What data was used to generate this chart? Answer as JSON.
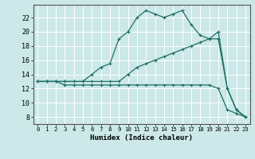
{
  "xlabel": "Humidex (Indice chaleur)",
  "background_color": "#cce8e8",
  "line_color": "#1e6e65",
  "grid_color": "#ffffff",
  "x_ticks": [
    0,
    1,
    2,
    3,
    4,
    5,
    6,
    7,
    8,
    9,
    10,
    11,
    12,
    13,
    14,
    15,
    16,
    17,
    18,
    19,
    20,
    21,
    22,
    23
  ],
  "y_ticks": [
    8,
    10,
    12,
    14,
    16,
    18,
    20,
    22
  ],
  "xlim": [
    -0.5,
    23.5
  ],
  "ylim": [
    7.0,
    23.8
  ],
  "line1_x": [
    0,
    1,
    2,
    3,
    4,
    5,
    6,
    7,
    8,
    9,
    10,
    11,
    12,
    13,
    14,
    15,
    16,
    17,
    18,
    19,
    20,
    21,
    22,
    23
  ],
  "line1_y": [
    13,
    13,
    13,
    12.5,
    12.5,
    12.5,
    12.5,
    12.5,
    12.5,
    12.5,
    12.5,
    12.5,
    12.5,
    12.5,
    12.5,
    12.5,
    12.5,
    12.5,
    12.5,
    12.5,
    12,
    9,
    8.5,
    8
  ],
  "line2_x": [
    0,
    1,
    2,
    3,
    4,
    5,
    6,
    7,
    8,
    9,
    10,
    11,
    12,
    13,
    14,
    15,
    16,
    17,
    18,
    19,
    20,
    21,
    22,
    23
  ],
  "line2_y": [
    13,
    13,
    13,
    13,
    13,
    13,
    13,
    13,
    13,
    13,
    14,
    15,
    15.5,
    16,
    16.5,
    17,
    17.5,
    18,
    18.5,
    19,
    19,
    12,
    9,
    8
  ],
  "line3_x": [
    0,
    1,
    2,
    3,
    4,
    5,
    6,
    7,
    8,
    9,
    10,
    11,
    12,
    13,
    14,
    15,
    16,
    17,
    18,
    19,
    20,
    21,
    22,
    23
  ],
  "line3_y": [
    13,
    13,
    13,
    13,
    13,
    13,
    14,
    15,
    15.5,
    19,
    20,
    22,
    23,
    22.5,
    22,
    22.5,
    23,
    21,
    19.5,
    19,
    20,
    12,
    9,
    8
  ]
}
